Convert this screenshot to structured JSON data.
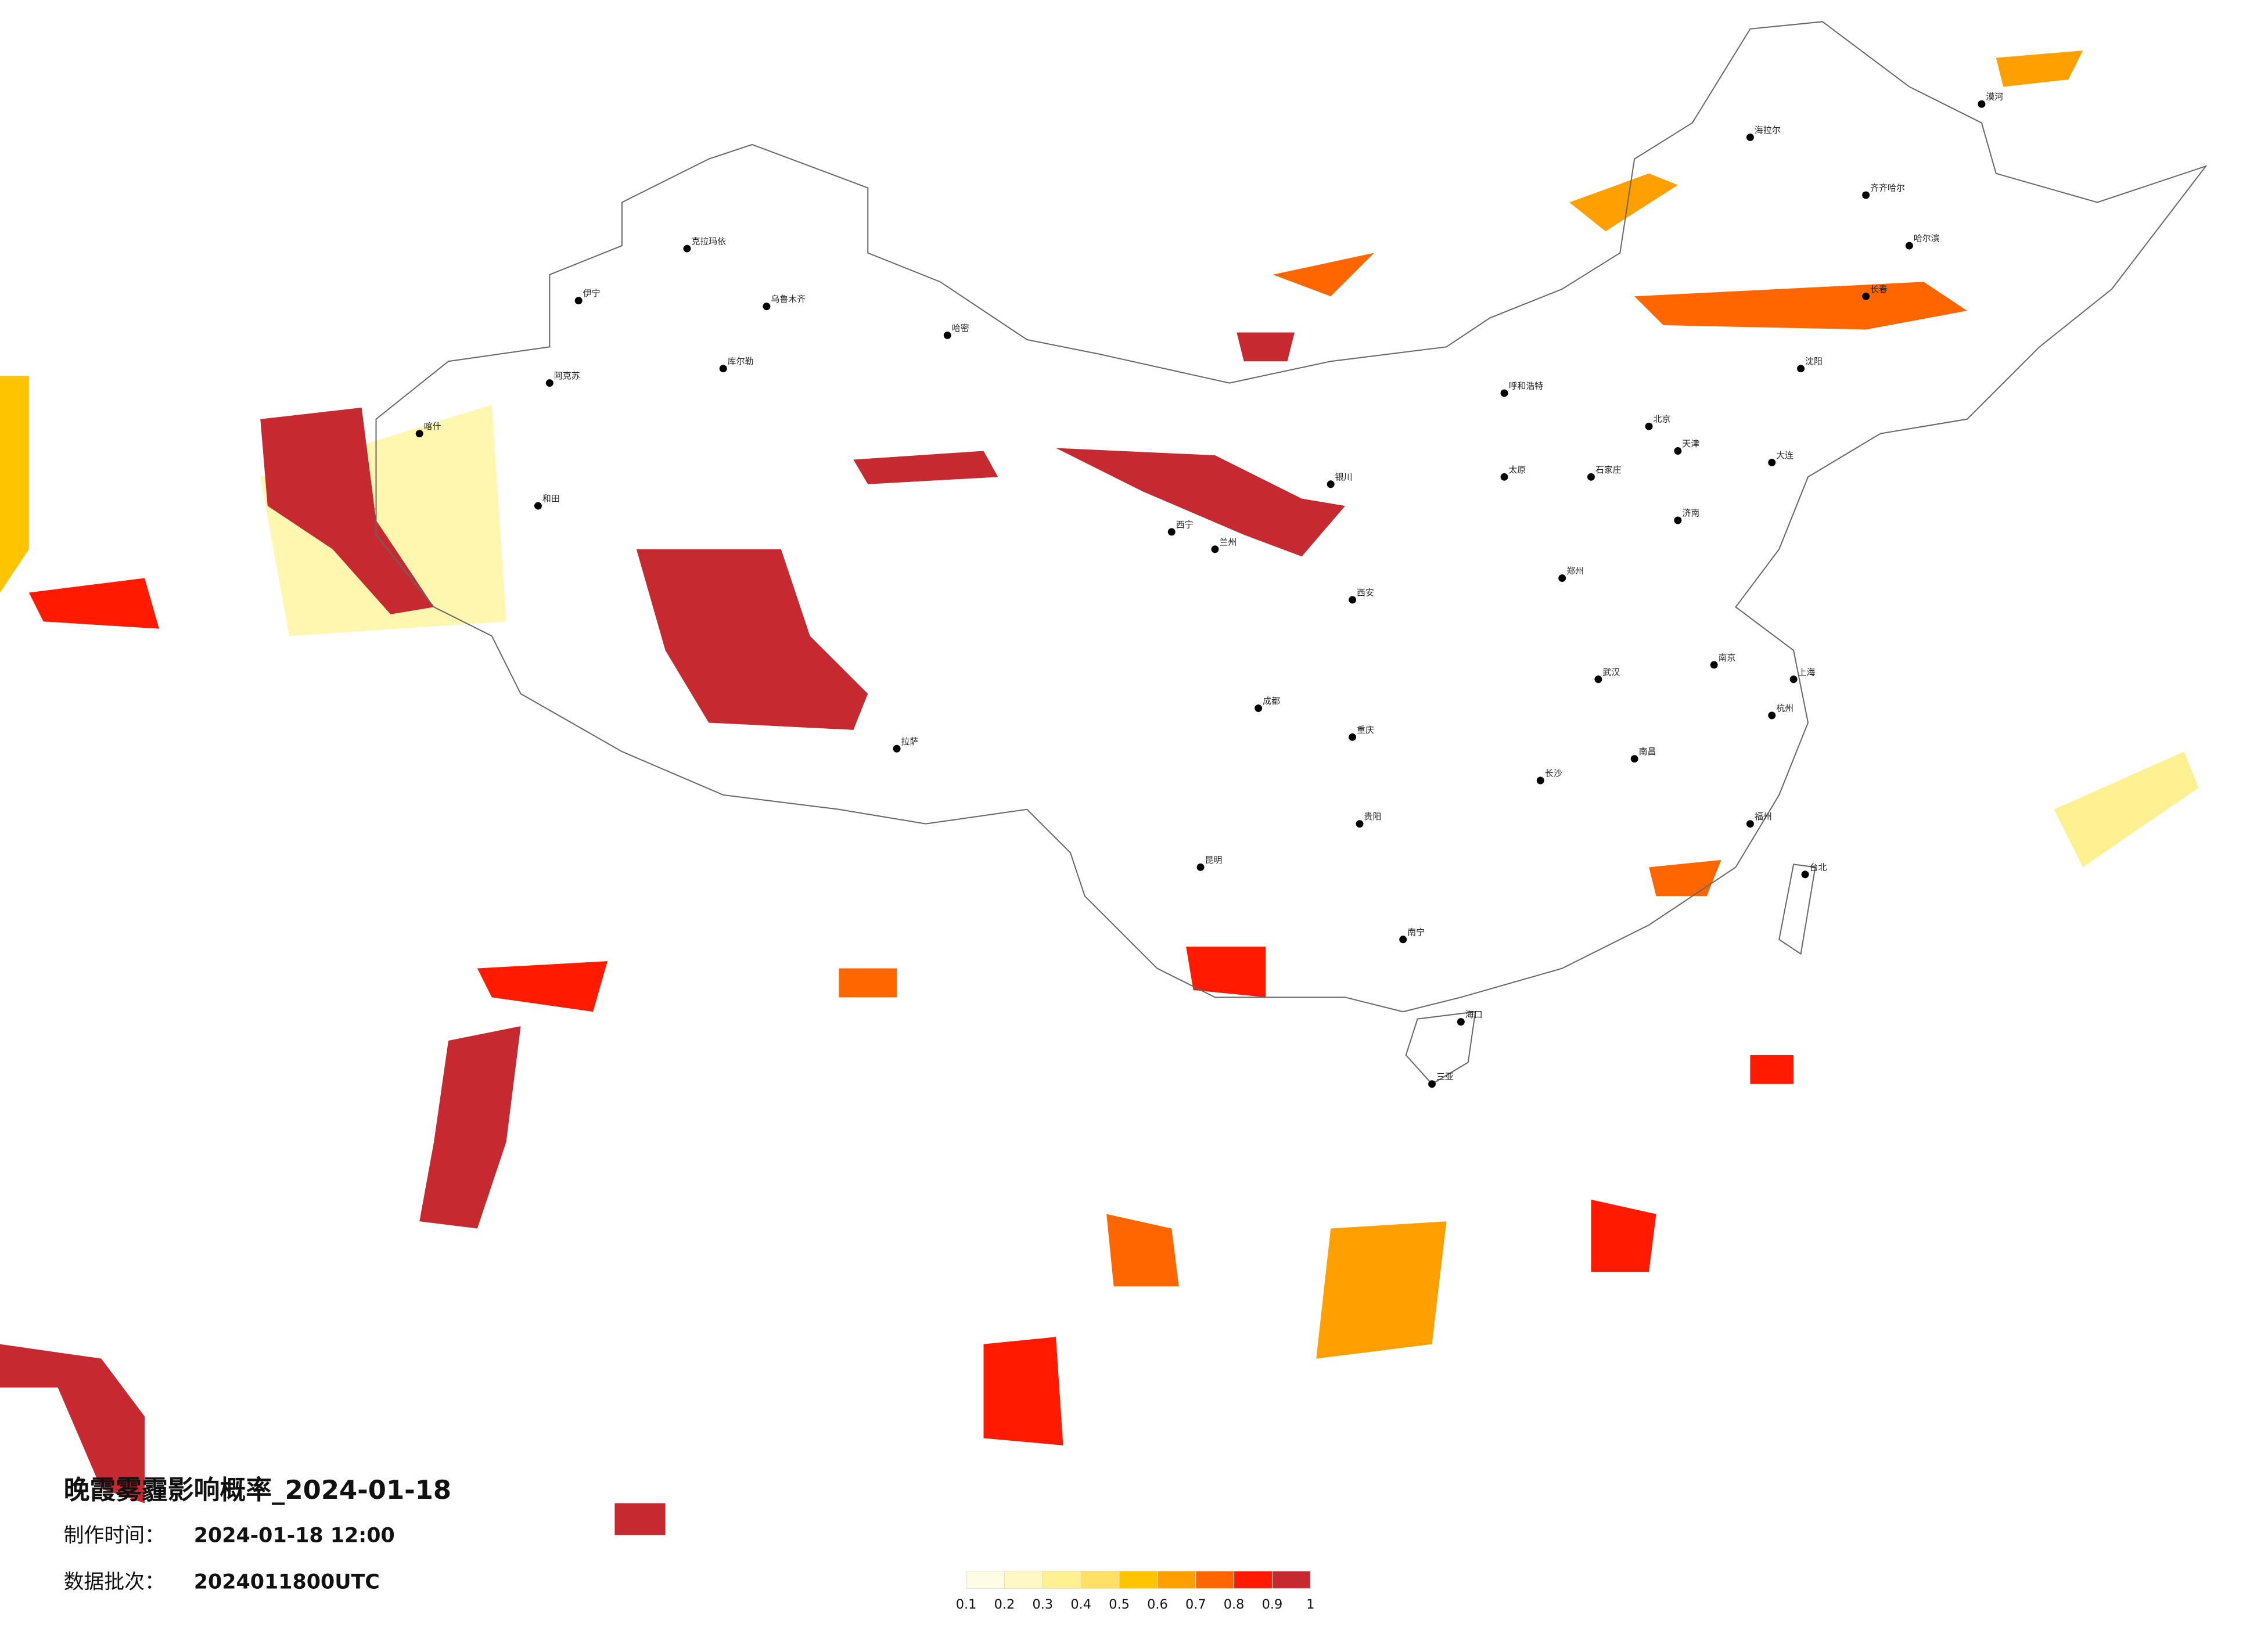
{
  "title": "晚霞雾霾影响概率_2024-01-18",
  "make_time_label": "制作时间：",
  "make_time": "2024-01-18 12:00",
  "batch_label": "数据批次：",
  "batch": "2024011800UTC",
  "legend": {
    "ticks": [
      0.1,
      0.2,
      0.3,
      0.4,
      0.5,
      0.6,
      0.7,
      0.8,
      0.9,
      1
    ],
    "colors": [
      "#fffce6",
      "#fff8c4",
      "#fff192",
      "#ffe066",
      "#ffc400",
      "#ffa000",
      "#ff6600",
      "#ff1a00",
      "#c62a30"
    ]
  },
  "cities": [
    "北京",
    "天津",
    "上海",
    "拉萨",
    "乌鲁木齐",
    "喀什",
    "和田",
    "克拉玛依",
    "伊宁",
    "阿克苏",
    "库尔勒",
    "哈密",
    "西宁",
    "兰州",
    "银川",
    "呼和浩特",
    "西安",
    "成都",
    "重庆",
    "贵阳",
    "昆明",
    "南宁",
    "海口",
    "三亚",
    "武汉",
    "长沙",
    "南昌",
    "福州",
    "台北",
    "杭州",
    "南京",
    "济南",
    "郑州",
    "太原",
    "石家庄",
    "沈阳",
    "长春",
    "哈尔滨",
    "漠河",
    "海拉尔",
    "齐齐哈尔",
    "大连"
  ]
}
